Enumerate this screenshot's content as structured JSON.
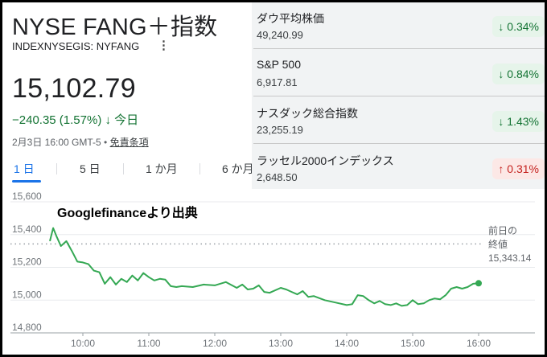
{
  "header": {
    "title": "NYSE FANG＋指数",
    "ticker": "INDEXNYSEGIS: NYFANG",
    "more_icon": "more-vert-icon",
    "price": "15,102.79",
    "change": "−240.35 (1.57%)",
    "change_arrow": "↓",
    "change_period": "今日",
    "timestamp": "2月3日 16:00 GMT-5 •",
    "disclaimer": "免責条項"
  },
  "tabs": [
    {
      "label": "1 日",
      "active": true
    },
    {
      "label": "5 日",
      "active": false
    },
    {
      "label": "1 か月",
      "active": false
    },
    {
      "label": "6 か月",
      "active": false
    }
  ],
  "indices": [
    {
      "name": "ダウ平均株価",
      "value": "49,240.99",
      "change": "0.34%",
      "direction": "down",
      "arrow": "↓"
    },
    {
      "name": "S&P 500",
      "value": "6,917.81",
      "change": "0.84%",
      "direction": "down",
      "arrow": "↓"
    },
    {
      "name": "ナスダック総合指数",
      "value": "23,255.19",
      "change": "1.43%",
      "direction": "down",
      "arrow": "↓"
    },
    {
      "name": "ラッセル2000インデックス",
      "value": "2,648.50",
      "change": "0.31%",
      "direction": "up",
      "arrow": "↑"
    }
  ],
  "colors": {
    "line": "#34a853",
    "down": "#137333",
    "up": "#c5221f",
    "accent": "#1a73e8"
  },
  "chart_data": {
    "type": "line",
    "annotation": "Googlefinanceより出典",
    "yticks": [
      15600,
      15400,
      15200,
      15000,
      14800
    ],
    "ytick_labels": [
      "15,600",
      "15,400",
      "15,200",
      "15,000",
      "14,800"
    ],
    "xticks": [
      "10:00",
      "11:00",
      "12:00",
      "13:00",
      "14:00",
      "15:00",
      "16:00"
    ],
    "ylim": [
      14800,
      15600
    ],
    "xlim": [
      "09:30",
      "16:00"
    ],
    "previous_close": 15343.14,
    "previous_close_label": [
      "前日の",
      "終値",
      "15,343.14"
    ],
    "series": [
      {
        "x": [
          "09:30",
          "09:33",
          "09:36",
          "09:40",
          "09:45",
          "09:50",
          "09:55",
          "10:00",
          "10:05",
          "10:10",
          "10:15",
          "10:20",
          "10:25",
          "10:30",
          "10:35",
          "10:40",
          "10:45",
          "10:50",
          "10:55",
          "11:00",
          "11:05",
          "11:10",
          "11:15",
          "11:20",
          "11:25",
          "11:30",
          "11:40",
          "11:50",
          "12:00",
          "12:10",
          "12:20",
          "12:25",
          "12:30",
          "12:35",
          "12:40",
          "12:45",
          "12:50",
          "13:00",
          "13:05",
          "13:10",
          "13:15",
          "13:20",
          "13:25",
          "13:30",
          "13:40",
          "13:50",
          "14:00",
          "14:05",
          "14:10",
          "14:15",
          "14:20",
          "14:25",
          "14:30",
          "14:35",
          "14:40",
          "14:45",
          "14:50",
          "14:55",
          "15:00",
          "15:05",
          "15:10",
          "15:15",
          "15:20",
          "15:25",
          "15:30",
          "15:35",
          "15:40",
          "15:45",
          "15:50",
          "15:55",
          "16:00"
        ],
        "y": [
          15360,
          15440,
          15390,
          15330,
          15360,
          15300,
          15235,
          15230,
          15220,
          15180,
          15170,
          15100,
          15140,
          15095,
          15130,
          15110,
          15150,
          15120,
          15165,
          15140,
          15120,
          15130,
          15125,
          15085,
          15080,
          15085,
          15080,
          15095,
          15090,
          15110,
          15075,
          15095,
          15065,
          15070,
          15090,
          15050,
          15045,
          15075,
          15065,
          15050,
          15035,
          15055,
          15020,
          15025,
          15000,
          14985,
          14970,
          14975,
          15030,
          15025,
          15000,
          14980,
          14995,
          14975,
          14970,
          14980,
          14965,
          14970,
          15000,
          14975,
          14980,
          15000,
          15010,
          15005,
          15030,
          15070,
          15080,
          15070,
          15080,
          15100,
          15102.79
        ]
      }
    ]
  }
}
